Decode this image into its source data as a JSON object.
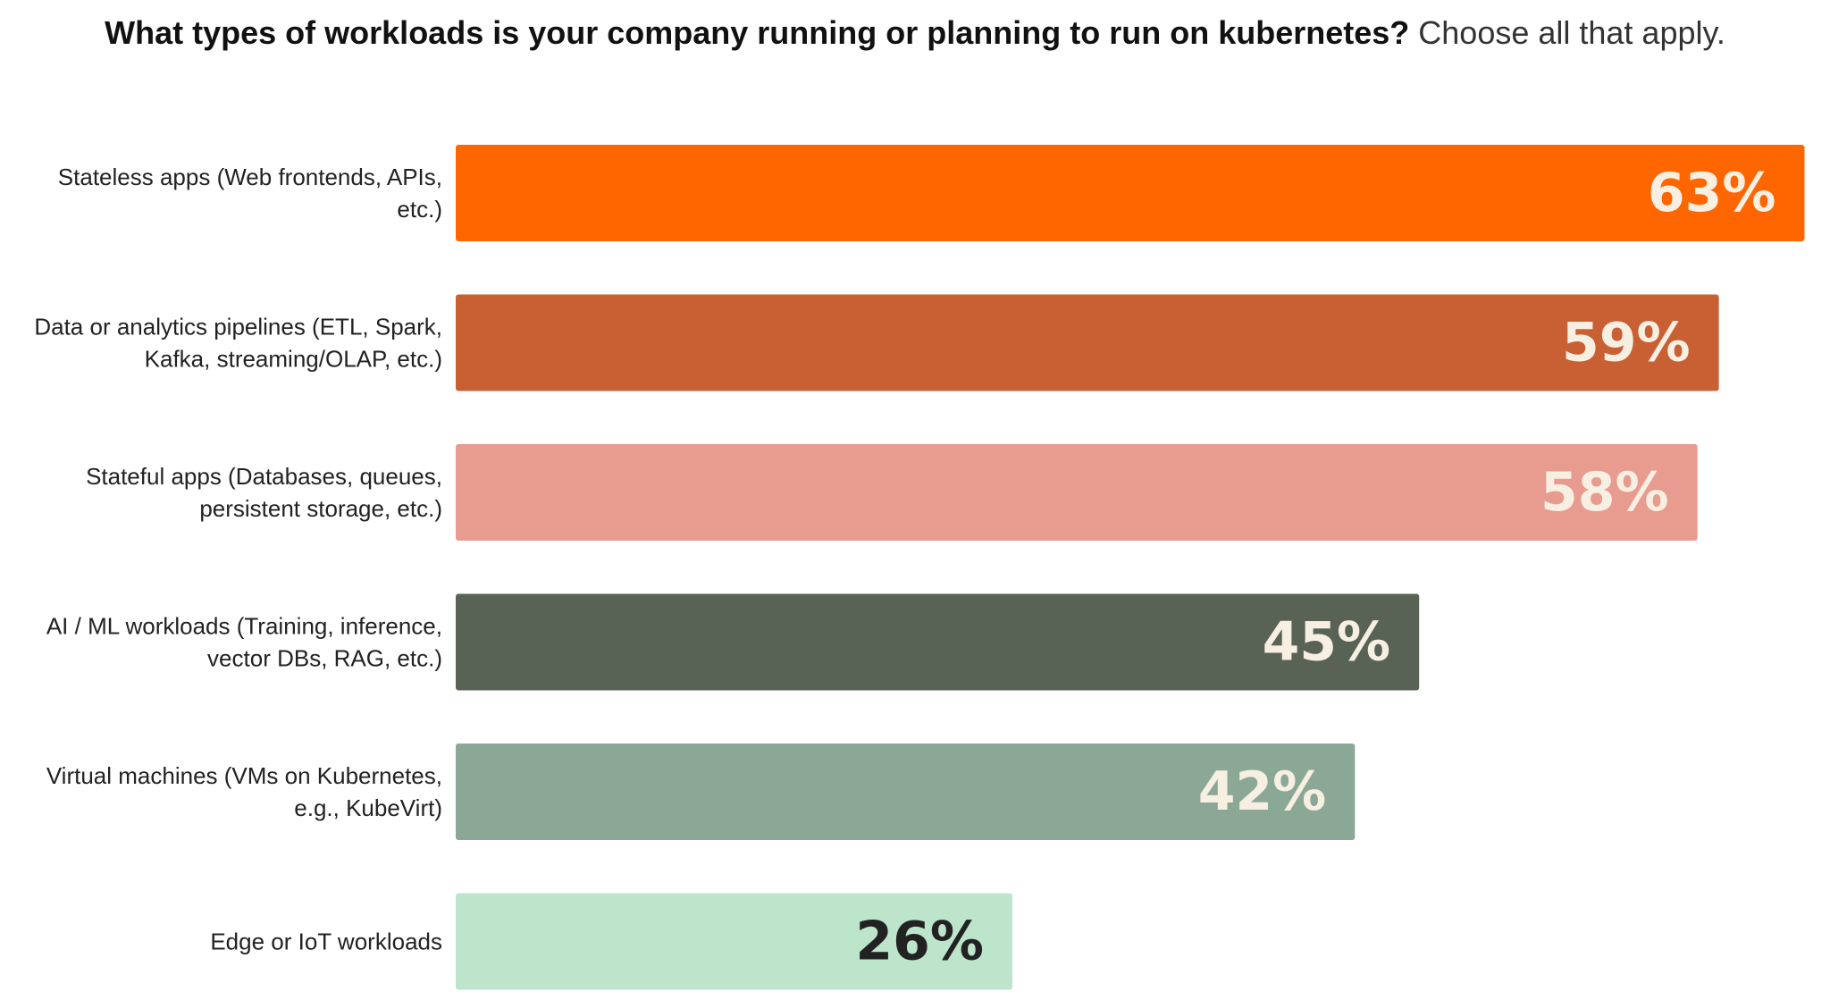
{
  "chart_data": {
    "type": "bar",
    "orientation": "horizontal",
    "title": "What types of workloads is your company running or planning to run on kubernetes?",
    "subtitle": "Choose all that apply.",
    "categories": [
      [
        "Stateless apps (Web frontends, APIs,",
        "etc.)"
      ],
      [
        "Data or analytics pipelines (ETL, Spark,",
        "Kafka, streaming/OLAP, etc.)"
      ],
      [
        "Stateful apps (Databases, queues,",
        "persistent storage, etc.)"
      ],
      [
        "AI / ML workloads (Training, inference,",
        "vector DBs, RAG, etc.)"
      ],
      [
        "Virtual machines (VMs on Kubernetes,",
        "e.g., KubeVirt)"
      ],
      [
        "Edge or IoT workloads"
      ]
    ],
    "values": [
      63,
      59,
      58,
      45,
      42,
      26
    ],
    "value_labels": [
      "63%",
      "59%",
      "58%",
      "45%",
      "42%",
      "26%"
    ],
    "bar_colors": [
      "#ff6600",
      "#c96034",
      "#e89b8f",
      "#586355",
      "#8ba896",
      "#bde5cb"
    ],
    "label_colors": [
      "#f8efe3",
      "#f8efe3",
      "#f8efe3",
      "#f8efe3",
      "#f8efe3",
      "#222222"
    ],
    "unit": "%",
    "grid": false,
    "legend": "none"
  }
}
